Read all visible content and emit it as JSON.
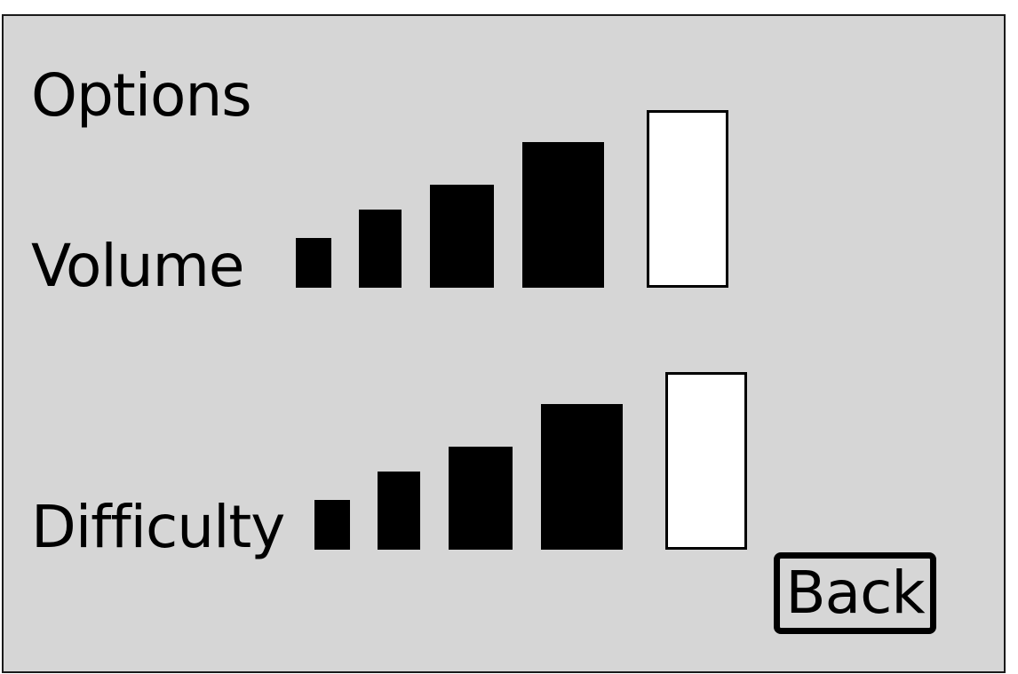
{
  "screen": {
    "title": "Options",
    "back_label": "Back"
  },
  "settings": [
    {
      "id": "volume",
      "label": "Volume",
      "level": 4,
      "max": 5
    },
    {
      "id": "difficulty",
      "label": "Difficulty",
      "level": 4,
      "max": 5
    }
  ],
  "colors": {
    "background": "#d6d6d6",
    "bar_filled": "#000000",
    "bar_empty": "#ffffff",
    "outline": "#000000"
  }
}
